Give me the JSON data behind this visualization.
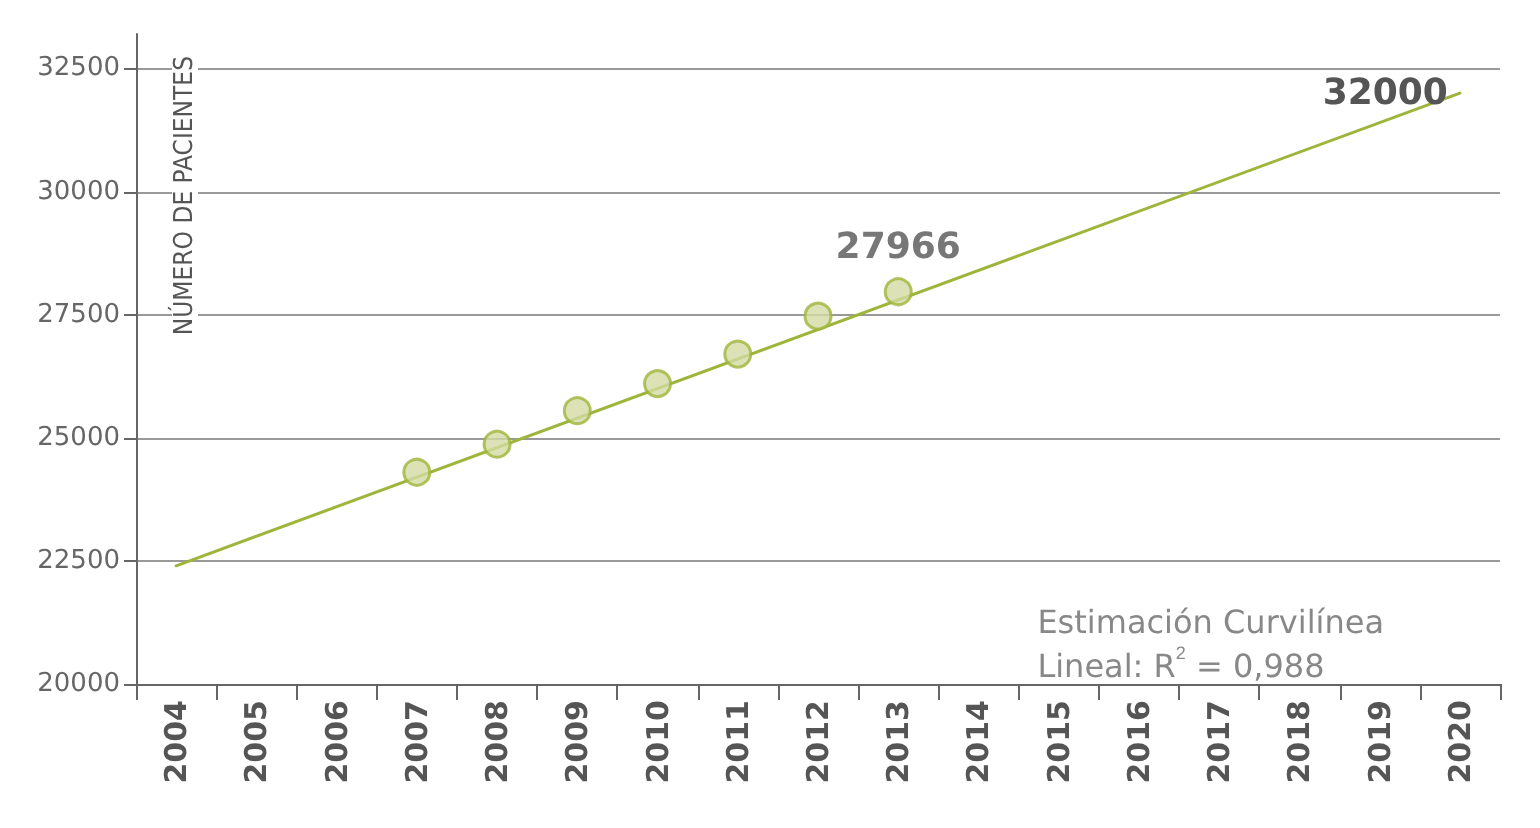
{
  "chart_data": {
    "type": "scatter",
    "ylabel": "NÚMERO DE PACIENTES",
    "categories": [
      "2004",
      "2005",
      "2006",
      "2007",
      "2008",
      "2009",
      "2010",
      "2011",
      "2012",
      "2013",
      "2014",
      "2015",
      "2016",
      "2017",
      "2018",
      "2019",
      "2020"
    ],
    "series": [
      {
        "type": "line",
        "color": "#9db53a",
        "values": [
          22400,
          null,
          null,
          null,
          null,
          null,
          null,
          null,
          null,
          null,
          null,
          null,
          null,
          null,
          null,
          null,
          32000
        ],
        "marker": "none",
        "value_labels": [
          null,
          null,
          null,
          null,
          null,
          null,
          null,
          null,
          null,
          null,
          null,
          null,
          null,
          null,
          null,
          null,
          "32000"
        ]
      },
      {
        "color": "#9db53a",
        "values": [
          null,
          null,
          null,
          24300,
          24870,
          25550,
          26100,
          26700,
          27470,
          27966,
          null,
          null,
          null,
          null,
          null,
          null,
          null
        ],
        "marker": "circle",
        "value_labels": [
          null,
          null,
          null,
          null,
          null,
          null,
          null,
          null,
          null,
          "27966",
          null,
          null,
          null,
          null,
          null,
          null,
          null
        ]
      }
    ],
    "ylim": [
      20000,
      33200
    ],
    "yticks": [
      20000,
      22500,
      25000,
      27500,
      30000,
      32500
    ],
    "grid": "y",
    "annotations": [
      "Estimación Curvilínea\nLineal: R$^{2}$ = 0,988"
    ]
  }
}
